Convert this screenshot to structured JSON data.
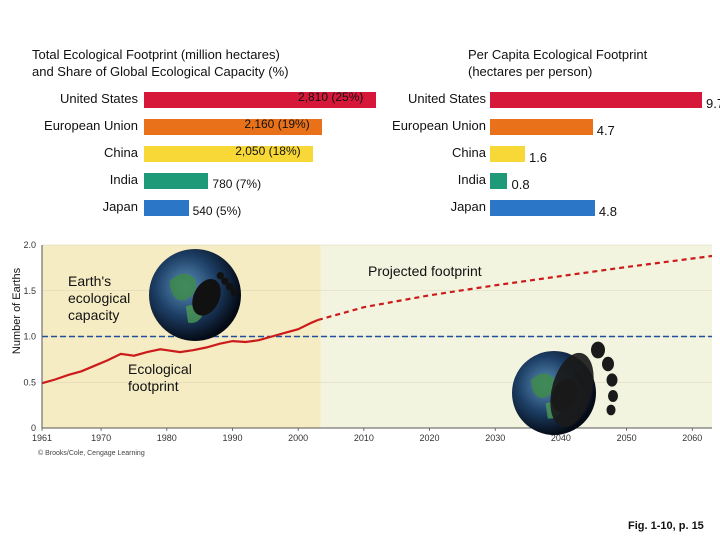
{
  "chart_data": [
    {
      "type": "bar",
      "orientation": "horizontal",
      "title": "Total Ecological Footprint (million hectares) and Share of Global Ecological Capacity (%)",
      "title_lines": [
        "Total Ecological Footprint (million hectares)",
        "and Share of Global Ecological Capacity (%)"
      ],
      "categories": [
        "United States",
        "European Union",
        "China",
        "India",
        "Japan"
      ],
      "values": [
        2810,
        2160,
        2050,
        780,
        540
      ],
      "labels": [
        "2,810 (25%)",
        "2,160 (19%)",
        "2,050 (18%)",
        "780 (7%)",
        "540 (5%)"
      ],
      "colors": [
        "#d7173a",
        "#e8711a",
        "#f7d836",
        "#1f9a78",
        "#2b76c7"
      ],
      "xlim": [
        0,
        2810
      ]
    },
    {
      "type": "bar",
      "orientation": "horizontal",
      "title": "Per Capita Ecological Footprint (hectares per person)",
      "title_lines": [
        "Per Capita Ecological Footprint",
        "(hectares per person)"
      ],
      "categories": [
        "United States",
        "European Union",
        "China",
        "India",
        "Japan"
      ],
      "values": [
        9.7,
        4.7,
        1.6,
        0.8,
        4.8
      ],
      "labels": [
        "9.7",
        "4.7",
        "1.6",
        "0.8",
        "4.8"
      ],
      "colors": [
        "#d7173a",
        "#e8711a",
        "#f7d836",
        "#1f9a78",
        "#2b76c7"
      ],
      "xlim": [
        0,
        9.7
      ]
    },
    {
      "type": "line",
      "ylabel": "Number of Earths",
      "x_ticks": [
        "1961",
        "1970",
        "1980",
        "1990",
        "2000",
        "2010",
        "2020",
        "2030",
        "2040",
        "2050",
        "2060"
      ],
      "y_ticks": [
        "0",
        "0.5",
        "1.0",
        "1.5",
        "2.0"
      ],
      "xlim": [
        1961,
        2063
      ],
      "ylim": [
        0,
        2.0
      ],
      "historical_end": 2003,
      "capacity_level": 1.0,
      "series": [
        {
          "name": "Ecological footprint",
          "style": "solid",
          "points": [
            [
              1961,
              0.49
            ],
            [
              1963,
              0.53
            ],
            [
              1965,
              0.58
            ],
            [
              1967,
              0.62
            ],
            [
              1969,
              0.68
            ],
            [
              1971,
              0.74
            ],
            [
              1973,
              0.81
            ],
            [
              1975,
              0.79
            ],
            [
              1977,
              0.83
            ],
            [
              1979,
              0.86
            ],
            [
              1980,
              0.85
            ],
            [
              1982,
              0.83
            ],
            [
              1984,
              0.85
            ],
            [
              1986,
              0.88
            ],
            [
              1988,
              0.92
            ],
            [
              1990,
              0.95
            ],
            [
              1992,
              0.94
            ],
            [
              1994,
              0.96
            ],
            [
              1996,
              1.0
            ],
            [
              1998,
              1.04
            ],
            [
              2000,
              1.08
            ],
            [
              2002,
              1.15
            ],
            [
              2003,
              1.18
            ]
          ]
        },
        {
          "name": "Projected footprint",
          "style": "dashed",
          "points": [
            [
              2003,
              1.18
            ],
            [
              2010,
              1.32
            ],
            [
              2020,
              1.45
            ],
            [
              2030,
              1.56
            ],
            [
              2040,
              1.66
            ],
            [
              2050,
              1.76
            ],
            [
              2063,
              1.88
            ]
          ]
        }
      ],
      "annotations": {
        "capacity": "Earth's ecological capacity",
        "footprint": "Ecological footprint",
        "projected": "Projected footprint"
      },
      "credit": "© Brooks/Cole, Cengage Learning",
      "colors": {
        "historical_bg": "#f6ecc4",
        "projected_bg": "#f2f4df",
        "capacity_line": "#1f4f9c",
        "footprint_line": "#cc1b1b"
      }
    }
  ],
  "figure_caption": "Fig. 1-10, p. 15"
}
